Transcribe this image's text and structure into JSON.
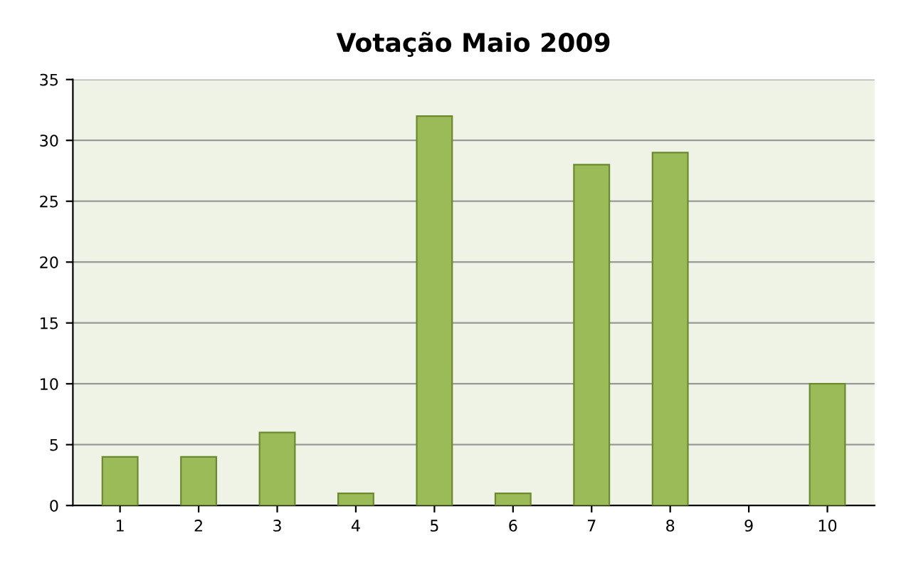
{
  "chart_data": {
    "type": "bar",
    "title": "Votação Maio 2009",
    "categories": [
      "1",
      "2",
      "3",
      "4",
      "5",
      "6",
      "7",
      "8",
      "9",
      "10"
    ],
    "values": [
      4,
      4,
      6,
      1,
      32,
      1,
      28,
      29,
      0,
      10
    ],
    "color": "#9bbb59",
    "ylim": [
      0,
      35
    ],
    "yticks": [
      0,
      5,
      10,
      15,
      20,
      25,
      30,
      35
    ],
    "grid": "y",
    "legend": false
  }
}
